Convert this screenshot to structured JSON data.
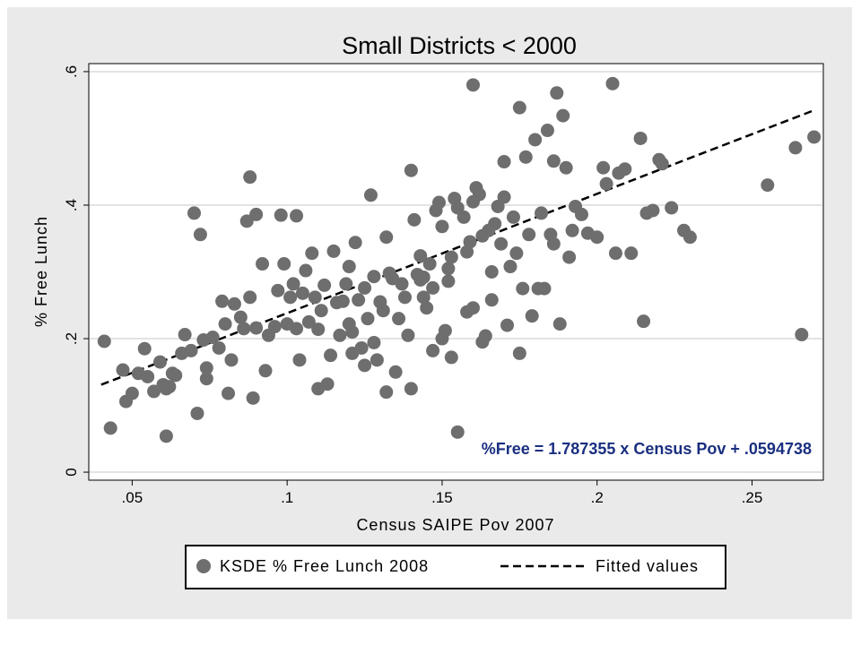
{
  "chart_data": {
    "type": "scatter",
    "title": "Small Districts < 2000",
    "xlabel": "Census SAIPE Pov 2007",
    "ylabel": "% Free Lunch",
    "xlim": [
      0.036,
      0.273
    ],
    "ylim": [
      -0.012,
      0.612
    ],
    "xticks": [
      0.05,
      0.1,
      0.15,
      0.2,
      0.25
    ],
    "xtick_labels": [
      ".05",
      ".1",
      ".15",
      ".2",
      ".25"
    ],
    "yticks": [
      0,
      0.2,
      0.4,
      0.6
    ],
    "ytick_labels": [
      "0",
      ".2",
      ".4",
      ".6"
    ],
    "grid": "horizontal",
    "annotation": "%Free =  1.787355  x Census Pov + .0594738",
    "colors": {
      "points": "#6e6e6e",
      "annotation": "#1a2f80",
      "frame_bg": "#eaeaea",
      "grid": "#e3e3e3"
    },
    "series": [
      {
        "name": "KSDE % Free Lunch 2008",
        "kind": "scatter",
        "points": [
          [
            0.041,
            0.196
          ],
          [
            0.043,
            0.066
          ],
          [
            0.047,
            0.153
          ],
          [
            0.048,
            0.106
          ],
          [
            0.05,
            0.118
          ],
          [
            0.052,
            0.148
          ],
          [
            0.054,
            0.185
          ],
          [
            0.055,
            0.143
          ],
          [
            0.057,
            0.121
          ],
          [
            0.059,
            0.165
          ],
          [
            0.06,
            0.131
          ],
          [
            0.061,
            0.125
          ],
          [
            0.062,
            0.128
          ],
          [
            0.063,
            0.148
          ],
          [
            0.061,
            0.054
          ],
          [
            0.064,
            0.145
          ],
          [
            0.066,
            0.178
          ],
          [
            0.067,
            0.206
          ],
          [
            0.069,
            0.182
          ],
          [
            0.07,
            0.388
          ],
          [
            0.071,
            0.088
          ],
          [
            0.072,
            0.356
          ],
          [
            0.073,
            0.198
          ],
          [
            0.074,
            0.156
          ],
          [
            0.074,
            0.14
          ],
          [
            0.076,
            0.202
          ],
          [
            0.078,
            0.186
          ],
          [
            0.079,
            0.256
          ],
          [
            0.08,
            0.222
          ],
          [
            0.081,
            0.118
          ],
          [
            0.082,
            0.168
          ],
          [
            0.083,
            0.252
          ],
          [
            0.085,
            0.232
          ],
          [
            0.086,
            0.215
          ],
          [
            0.087,
            0.376
          ],
          [
            0.088,
            0.262
          ],
          [
            0.088,
            0.442
          ],
          [
            0.089,
            0.111
          ],
          [
            0.09,
            0.216
          ],
          [
            0.09,
            0.386
          ],
          [
            0.092,
            0.312
          ],
          [
            0.093,
            0.152
          ],
          [
            0.094,
            0.205
          ],
          [
            0.096,
            0.218
          ],
          [
            0.097,
            0.272
          ],
          [
            0.098,
            0.385
          ],
          [
            0.099,
            0.312
          ],
          [
            0.1,
            0.222
          ],
          [
            0.101,
            0.262
          ],
          [
            0.102,
            0.282
          ],
          [
            0.103,
            0.215
          ],
          [
            0.103,
            0.384
          ],
          [
            0.104,
            0.168
          ],
          [
            0.105,
            0.268
          ],
          [
            0.106,
            0.302
          ],
          [
            0.107,
            0.225
          ],
          [
            0.108,
            0.328
          ],
          [
            0.109,
            0.262
          ],
          [
            0.11,
            0.214
          ],
          [
            0.11,
            0.125
          ],
          [
            0.111,
            0.242
          ],
          [
            0.112,
            0.28
          ],
          [
            0.113,
            0.132
          ],
          [
            0.114,
            0.175
          ],
          [
            0.115,
            0.331
          ],
          [
            0.116,
            0.254
          ],
          [
            0.117,
            0.205
          ],
          [
            0.118,
            0.256
          ],
          [
            0.119,
            0.282
          ],
          [
            0.12,
            0.222
          ],
          [
            0.12,
            0.308
          ],
          [
            0.121,
            0.21
          ],
          [
            0.121,
            0.178
          ],
          [
            0.122,
            0.344
          ],
          [
            0.123,
            0.258
          ],
          [
            0.124,
            0.186
          ],
          [
            0.125,
            0.16
          ],
          [
            0.125,
            0.276
          ],
          [
            0.126,
            0.23
          ],
          [
            0.127,
            0.415
          ],
          [
            0.128,
            0.194
          ],
          [
            0.128,
            0.293
          ],
          [
            0.129,
            0.168
          ],
          [
            0.13,
            0.255
          ],
          [
            0.131,
            0.242
          ],
          [
            0.132,
            0.352
          ],
          [
            0.132,
            0.12
          ],
          [
            0.133,
            0.298
          ],
          [
            0.134,
            0.29
          ],
          [
            0.135,
            0.15
          ],
          [
            0.136,
            0.23
          ],
          [
            0.137,
            0.282
          ],
          [
            0.138,
            0.262
          ],
          [
            0.139,
            0.205
          ],
          [
            0.14,
            0.125
          ],
          [
            0.141,
            0.378
          ],
          [
            0.14,
            0.452
          ],
          [
            0.142,
            0.296
          ],
          [
            0.143,
            0.324
          ],
          [
            0.143,
            0.288
          ],
          [
            0.144,
            0.292
          ],
          [
            0.144,
            0.262
          ],
          [
            0.145,
            0.246
          ],
          [
            0.146,
            0.312
          ],
          [
            0.147,
            0.276
          ],
          [
            0.147,
            0.182
          ],
          [
            0.148,
            0.392
          ],
          [
            0.149,
            0.404
          ],
          [
            0.15,
            0.2
          ],
          [
            0.15,
            0.368
          ],
          [
            0.151,
            0.212
          ],
          [
            0.152,
            0.286
          ],
          [
            0.152,
            0.305
          ],
          [
            0.153,
            0.322
          ],
          [
            0.153,
            0.172
          ],
          [
            0.154,
            0.41
          ],
          [
            0.155,
            0.396
          ],
          [
            0.155,
            0.06
          ],
          [
            0.157,
            0.382
          ],
          [
            0.158,
            0.24
          ],
          [
            0.158,
            0.33
          ],
          [
            0.159,
            0.345
          ],
          [
            0.16,
            0.246
          ],
          [
            0.16,
            0.405
          ],
          [
            0.16,
            0.58
          ],
          [
            0.161,
            0.426
          ],
          [
            0.162,
            0.416
          ],
          [
            0.163,
            0.354
          ],
          [
            0.163,
            0.195
          ],
          [
            0.164,
            0.204
          ],
          [
            0.165,
            0.362
          ],
          [
            0.166,
            0.3
          ],
          [
            0.166,
            0.258
          ],
          [
            0.167,
            0.372
          ],
          [
            0.168,
            0.398
          ],
          [
            0.169,
            0.342
          ],
          [
            0.17,
            0.412
          ],
          [
            0.17,
            0.465
          ],
          [
            0.171,
            0.22
          ],
          [
            0.172,
            0.308
          ],
          [
            0.173,
            0.382
          ],
          [
            0.174,
            0.328
          ],
          [
            0.175,
            0.178
          ],
          [
            0.175,
            0.546
          ],
          [
            0.176,
            0.275
          ],
          [
            0.177,
            0.472
          ],
          [
            0.178,
            0.356
          ],
          [
            0.179,
            0.234
          ],
          [
            0.18,
            0.498
          ],
          [
            0.181,
            0.275
          ],
          [
            0.182,
            0.388
          ],
          [
            0.183,
            0.275
          ],
          [
            0.184,
            0.512
          ],
          [
            0.185,
            0.356
          ],
          [
            0.186,
            0.466
          ],
          [
            0.186,
            0.342
          ],
          [
            0.187,
            0.568
          ],
          [
            0.188,
            0.222
          ],
          [
            0.189,
            0.534
          ],
          [
            0.19,
            0.456
          ],
          [
            0.191,
            0.322
          ],
          [
            0.192,
            0.362
          ],
          [
            0.193,
            0.398
          ],
          [
            0.195,
            0.386
          ],
          [
            0.197,
            0.358
          ],
          [
            0.2,
            0.352
          ],
          [
            0.202,
            0.456
          ],
          [
            0.203,
            0.432
          ],
          [
            0.205,
            0.582
          ],
          [
            0.206,
            0.328
          ],
          [
            0.207,
            0.448
          ],
          [
            0.209,
            0.454
          ],
          [
            0.211,
            0.328
          ],
          [
            0.214,
            0.5
          ],
          [
            0.215,
            0.226
          ],
          [
            0.216,
            0.388
          ],
          [
            0.218,
            0.392
          ],
          [
            0.22,
            0.468
          ],
          [
            0.221,
            0.462
          ],
          [
            0.224,
            0.396
          ],
          [
            0.228,
            0.362
          ],
          [
            0.23,
            0.352
          ],
          [
            0.255,
            0.43
          ],
          [
            0.264,
            0.486
          ],
          [
            0.266,
            0.206
          ],
          [
            0.27,
            0.502
          ]
        ]
      },
      {
        "name": "Fitted values",
        "kind": "line",
        "style": "dashed",
        "x": [
          0.04,
          0.27
        ]
      }
    ],
    "fit": {
      "slope": 1.787355,
      "intercept": 0.0594738
    },
    "legend": {
      "position": "bottom",
      "entries": [
        "KSDE % Free Lunch 2008",
        "Fitted values"
      ]
    }
  }
}
